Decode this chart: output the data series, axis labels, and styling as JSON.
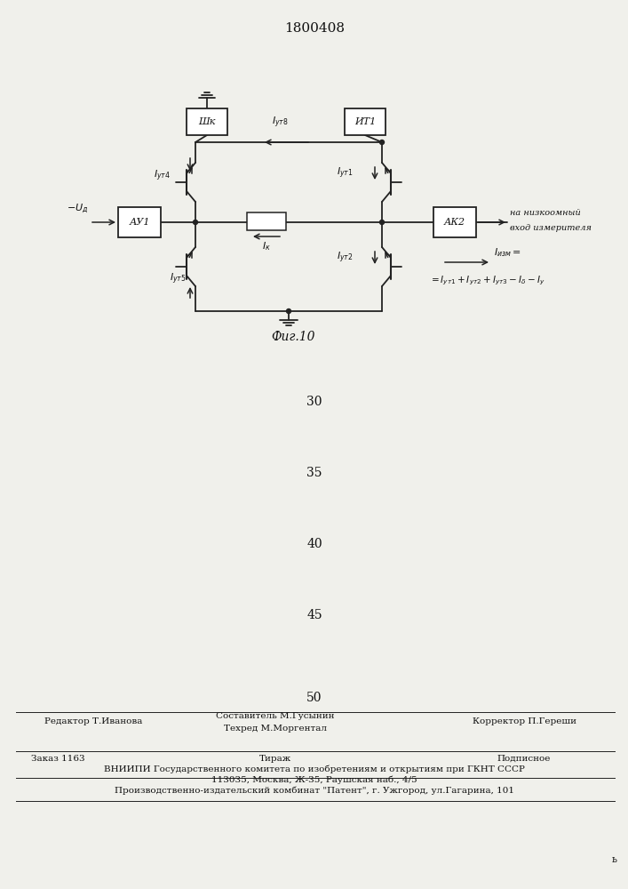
{
  "title": "1800408",
  "fig_caption": "Фиг.10",
  "numbers": [
    "30",
    "35",
    "40",
    "45",
    "50"
  ],
  "footer_line1_left": "Редактор Т.Иванова",
  "footer_line1_center1": "Составитель М.Гусынин",
  "footer_line1_center2": "Техред М.Моргентал",
  "footer_line1_right": "Корректор П.Гереши",
  "footer_line2_left": "Заказ 1163",
  "footer_line2_center": "Тираж",
  "footer_line2_right": "Подписное",
  "footer_line3": "ВНИИПИ Государственного комитета по изобретениям и открытиям при ГКНТ СССР",
  "footer_line4": "113035, Москва, Ж-35, Раушская наб., 4/5",
  "footer_line5": "Производственно-издательский комбинат \"Патент\", г. Ужгород, ул.Гагарина, 101",
  "bg_color": "#f0f0eb",
  "line_color": "#222222",
  "text_color": "#111111"
}
